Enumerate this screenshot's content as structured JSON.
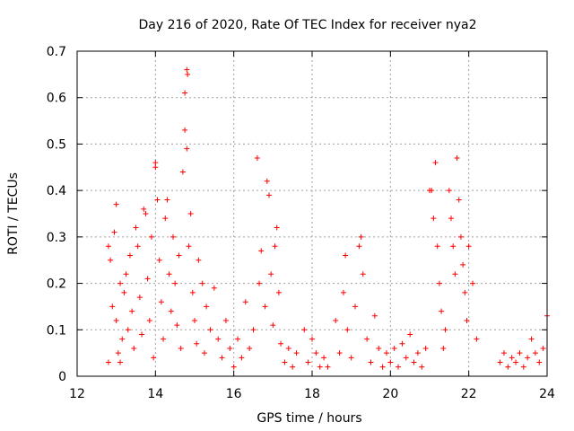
{
  "chart_data": {
    "type": "scatter",
    "title": "Day 216 of 2020, Rate Of TEC Index for receiver nya2",
    "xlabel": "GPS time / hours",
    "ylabel": "ROTI / TECUs",
    "xlim": [
      12,
      24
    ],
    "ylim": [
      0,
      0.7
    ],
    "xticks": [
      12,
      14,
      16,
      18,
      20,
      22,
      24
    ],
    "yticks": [
      0,
      0.1,
      0.2,
      0.3,
      0.4,
      0.5,
      0.6,
      0.7
    ],
    "xtick_labels": [
      "12",
      "14",
      "16",
      "18",
      "20",
      "22",
      "24"
    ],
    "ytick_labels": [
      "0",
      "0.1",
      "0.2",
      "0.3",
      "0.4",
      "0.5",
      "0.6",
      "0.7"
    ],
    "grid": true,
    "marker": "+",
    "color": "#ff0000",
    "series": [
      {
        "name": "ROTI",
        "points": [
          [
            12.8,
            0.03
          ],
          [
            12.8,
            0.28
          ],
          [
            12.85,
            0.25
          ],
          [
            12.9,
            0.15
          ],
          [
            12.95,
            0.31
          ],
          [
            13.0,
            0.37
          ],
          [
            13.0,
            0.12
          ],
          [
            13.05,
            0.05
          ],
          [
            13.1,
            0.2
          ],
          [
            13.1,
            0.03
          ],
          [
            13.15,
            0.08
          ],
          [
            13.2,
            0.18
          ],
          [
            13.25,
            0.22
          ],
          [
            13.3,
            0.1
          ],
          [
            13.35,
            0.26
          ],
          [
            13.4,
            0.14
          ],
          [
            13.45,
            0.06
          ],
          [
            13.5,
            0.32
          ],
          [
            13.55,
            0.28
          ],
          [
            13.6,
            0.17
          ],
          [
            13.65,
            0.09
          ],
          [
            13.7,
            0.36
          ],
          [
            13.75,
            0.35
          ],
          [
            13.8,
            0.21
          ],
          [
            13.85,
            0.12
          ],
          [
            13.9,
            0.3
          ],
          [
            13.95,
            0.04
          ],
          [
            14.0,
            0.45
          ],
          [
            14.0,
            0.46
          ],
          [
            14.05,
            0.38
          ],
          [
            14.1,
            0.25
          ],
          [
            14.15,
            0.16
          ],
          [
            14.2,
            0.08
          ],
          [
            14.25,
            0.34
          ],
          [
            14.3,
            0.38
          ],
          [
            14.35,
            0.22
          ],
          [
            14.4,
            0.14
          ],
          [
            14.45,
            0.3
          ],
          [
            14.5,
            0.2
          ],
          [
            14.55,
            0.11
          ],
          [
            14.6,
            0.26
          ],
          [
            14.65,
            0.06
          ],
          [
            14.7,
            0.44
          ],
          [
            14.75,
            0.53
          ],
          [
            14.75,
            0.61
          ],
          [
            14.8,
            0.66
          ],
          [
            14.82,
            0.65
          ],
          [
            14.8,
            0.49
          ],
          [
            14.85,
            0.28
          ],
          [
            14.9,
            0.35
          ],
          [
            14.95,
            0.18
          ],
          [
            15.0,
            0.12
          ],
          [
            15.05,
            0.07
          ],
          [
            15.1,
            0.25
          ],
          [
            15.2,
            0.2
          ],
          [
            15.25,
            0.05
          ],
          [
            15.3,
            0.15
          ],
          [
            15.4,
            0.1
          ],
          [
            15.5,
            0.19
          ],
          [
            15.6,
            0.08
          ],
          [
            15.7,
            0.04
          ],
          [
            15.8,
            0.12
          ],
          [
            15.9,
            0.06
          ],
          [
            16.0,
            0.02
          ],
          [
            16.1,
            0.08
          ],
          [
            16.2,
            0.04
          ],
          [
            16.3,
            0.16
          ],
          [
            16.4,
            0.06
          ],
          [
            16.5,
            0.1
          ],
          [
            16.6,
            0.47
          ],
          [
            16.65,
            0.2
          ],
          [
            16.7,
            0.27
          ],
          [
            16.8,
            0.15
          ],
          [
            16.85,
            0.42
          ],
          [
            16.9,
            0.39
          ],
          [
            16.95,
            0.22
          ],
          [
            17.0,
            0.11
          ],
          [
            17.05,
            0.28
          ],
          [
            17.1,
            0.32
          ],
          [
            17.15,
            0.18
          ],
          [
            17.2,
            0.07
          ],
          [
            17.3,
            0.03
          ],
          [
            17.4,
            0.06
          ],
          [
            17.5,
            0.02
          ],
          [
            17.6,
            0.05
          ],
          [
            17.8,
            0.1
          ],
          [
            17.9,
            0.03
          ],
          [
            18.0,
            0.08
          ],
          [
            18.1,
            0.05
          ],
          [
            18.2,
            0.02
          ],
          [
            18.3,
            0.04
          ],
          [
            18.4,
            0.02
          ],
          [
            18.6,
            0.12
          ],
          [
            18.7,
            0.05
          ],
          [
            18.8,
            0.18
          ],
          [
            18.85,
            0.26
          ],
          [
            18.9,
            0.1
          ],
          [
            19.0,
            0.04
          ],
          [
            19.1,
            0.15
          ],
          [
            19.2,
            0.28
          ],
          [
            19.25,
            0.3
          ],
          [
            19.3,
            0.22
          ],
          [
            19.4,
            0.08
          ],
          [
            19.5,
            0.03
          ],
          [
            19.6,
            0.13
          ],
          [
            19.7,
            0.06
          ],
          [
            19.8,
            0.02
          ],
          [
            19.9,
            0.05
          ],
          [
            20.0,
            0.03
          ],
          [
            20.1,
            0.06
          ],
          [
            20.2,
            0.02
          ],
          [
            20.3,
            0.07
          ],
          [
            20.4,
            0.04
          ],
          [
            20.5,
            0.09
          ],
          [
            20.6,
            0.03
          ],
          [
            20.7,
            0.05
          ],
          [
            20.8,
            0.02
          ],
          [
            20.9,
            0.06
          ],
          [
            21.0,
            0.4
          ],
          [
            21.05,
            0.4
          ],
          [
            21.1,
            0.34
          ],
          [
            21.15,
            0.46
          ],
          [
            21.2,
            0.28
          ],
          [
            21.25,
            0.2
          ],
          [
            21.3,
            0.14
          ],
          [
            21.35,
            0.06
          ],
          [
            21.4,
            0.1
          ],
          [
            21.5,
            0.4
          ],
          [
            21.55,
            0.34
          ],
          [
            21.6,
            0.28
          ],
          [
            21.65,
            0.22
          ],
          [
            21.7,
            0.47
          ],
          [
            21.75,
            0.38
          ],
          [
            21.8,
            0.3
          ],
          [
            21.85,
            0.24
          ],
          [
            21.9,
            0.18
          ],
          [
            21.95,
            0.12
          ],
          [
            22.0,
            0.28
          ],
          [
            22.1,
            0.2
          ],
          [
            22.2,
            0.08
          ],
          [
            22.8,
            0.03
          ],
          [
            22.9,
            0.05
          ],
          [
            23.0,
            0.02
          ],
          [
            23.1,
            0.04
          ],
          [
            23.2,
            0.03
          ],
          [
            23.3,
            0.05
          ],
          [
            23.4,
            0.02
          ],
          [
            23.5,
            0.04
          ],
          [
            23.6,
            0.08
          ],
          [
            23.7,
            0.05
          ],
          [
            23.8,
            0.03
          ],
          [
            23.9,
            0.06
          ],
          [
            24.0,
            0.13
          ]
        ]
      }
    ]
  }
}
